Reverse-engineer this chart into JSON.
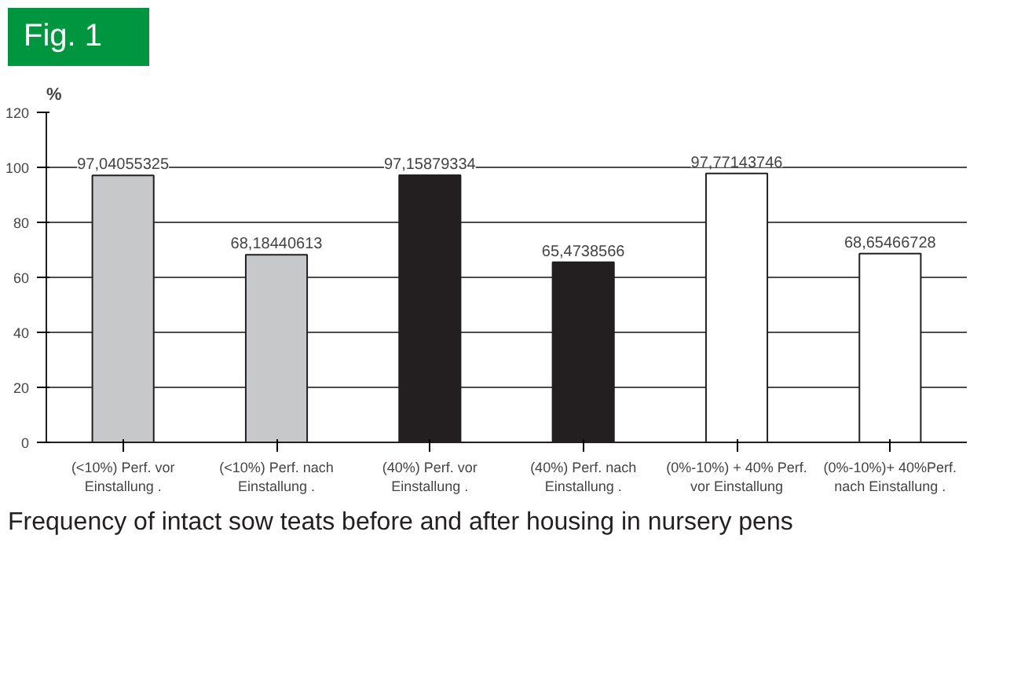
{
  "chart_data": {
    "type": "bar",
    "title": "Fig. 1",
    "ylabel": "%",
    "categories": [
      "(<10%) Perf. vor Einstallung .",
      "(<10%) Perf. nach Einstallung .",
      "(40%) Perf. vor Einstallung .",
      "(40%) Perf. nach Einstallung .",
      "(0%-10%) + 40% Perf. vor Einstallung",
      "(0%-10%)+ 40%Perf. nach Einstallung ."
    ],
    "values": [
      97.04055325,
      68.18440613,
      97.15879334,
      65.4738566,
      97.77143746,
      68.65466728
    ],
    "value_labels": [
      "97,04055325",
      "68,18440613",
      "97,15879334",
      "65,4738566",
      "97,77143746",
      "68,65466728"
    ],
    "colors": [
      "#c6c8ca",
      "#c6c8ca",
      "#231f20",
      "#231f20",
      "#ffffff",
      "#ffffff"
    ],
    "ylim": [
      0,
      120
    ],
    "yticks": [
      0,
      20,
      40,
      60,
      80,
      100,
      120
    ],
    "grid": "y",
    "annotations": [
      "Frequency of intact sow teats before and after housing in nursery pens"
    ]
  }
}
